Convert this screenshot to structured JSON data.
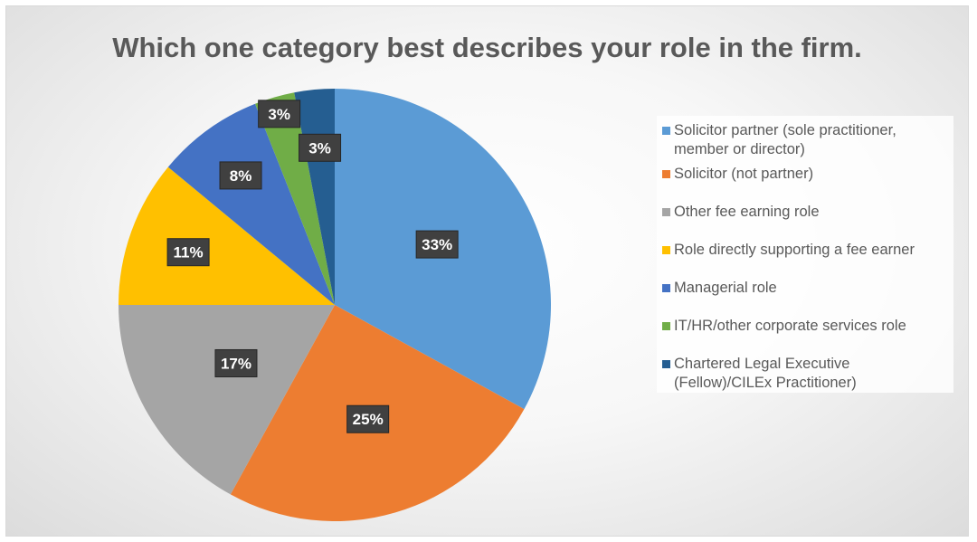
{
  "chart_data": {
    "type": "pie",
    "title": "Which one category best describes your role in the firm.",
    "categories": [
      "Solicitor partner (sole practitioner,\nmember or director)",
      "Solicitor (not partner)",
      "Other fee earning role",
      "Role directly supporting a fee earner",
      "Managerial role",
      "IT/HR/other corporate services role",
      "Chartered Legal Executive\n(Fellow)/CILEx Practitioner)"
    ],
    "values": [
      33,
      25,
      17,
      11,
      8,
      3,
      3
    ],
    "labels": [
      "33%",
      "25%",
      "17%",
      "11%",
      "8%",
      "3%",
      "3%"
    ],
    "colors": [
      "#5B9BD5",
      "#ED7D31",
      "#A5A5A5",
      "#FFC000",
      "#4472C4",
      "#70AD47",
      "#255E91"
    ],
    "legend": "right"
  }
}
